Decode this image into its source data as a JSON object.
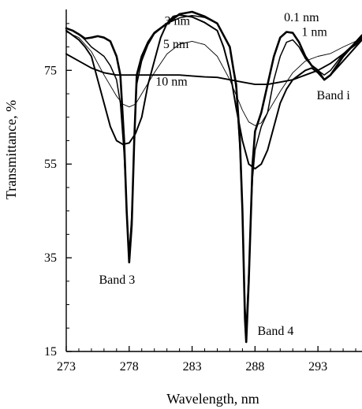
{
  "chart_data": {
    "type": "line",
    "xlabel": "Wavelength, nm",
    "ylabel": "Transmittance, %",
    "xlim": [
      273,
      296.5
    ],
    "ylim": [
      15,
      88
    ],
    "x_ticks": [
      273,
      278,
      283,
      288,
      293
    ],
    "y_ticks": [
      15,
      35,
      55,
      75
    ],
    "grid": false,
    "series": [
      {
        "name": "0.1 nm",
        "color": "#000000",
        "width": 2.6,
        "points": [
          [
            273,
            84
          ],
          [
            273.5,
            83.5
          ],
          [
            274,
            82.7
          ],
          [
            274.5,
            81.8
          ],
          [
            275,
            82
          ],
          [
            275.5,
            82.3
          ],
          [
            276,
            82
          ],
          [
            276.5,
            81.2
          ],
          [
            277,
            78
          ],
          [
            277.3,
            74
          ],
          [
            277.6,
            60
          ],
          [
            277.8,
            45
          ],
          [
            278,
            34
          ],
          [
            278.2,
            42
          ],
          [
            278.4,
            60
          ],
          [
            278.6,
            74
          ],
          [
            279,
            78
          ],
          [
            279.5,
            81
          ],
          [
            280,
            83
          ],
          [
            281,
            85
          ],
          [
            282,
            87
          ],
          [
            283,
            87.5
          ],
          [
            284,
            86.5
          ],
          [
            285,
            85
          ],
          [
            286,
            80
          ],
          [
            286.3,
            75
          ],
          [
            286.5,
            72
          ],
          [
            286.8,
            60
          ],
          [
            287,
            45
          ],
          [
            287.2,
            22
          ],
          [
            287.3,
            17
          ],
          [
            287.5,
            30
          ],
          [
            287.8,
            55
          ],
          [
            288,
            62
          ],
          [
            288.5,
            66
          ],
          [
            289,
            72
          ],
          [
            289.5,
            78
          ],
          [
            290,
            82
          ],
          [
            290.5,
            83.2
          ],
          [
            291,
            83
          ],
          [
            291.5,
            81
          ],
          [
            292,
            78
          ],
          [
            292.5,
            76
          ],
          [
            293,
            75
          ],
          [
            293.5,
            73
          ],
          [
            294,
            74
          ],
          [
            295,
            78
          ],
          [
            296,
            81
          ],
          [
            296.5,
            82.5
          ]
        ]
      },
      {
        "name": "1 nm",
        "color": "#000000",
        "width": 1.5,
        "points": [
          [
            273,
            84
          ],
          [
            273.5,
            83.5
          ],
          [
            274,
            82.7
          ],
          [
            274.5,
            81.5
          ],
          [
            275,
            80
          ],
          [
            275.5,
            79
          ],
          [
            276,
            78
          ],
          [
            276.5,
            76
          ],
          [
            277,
            73
          ],
          [
            277.3,
            68
          ],
          [
            277.6,
            57
          ],
          [
            277.8,
            45
          ],
          [
            278,
            36
          ],
          [
            278.2,
            44
          ],
          [
            278.4,
            60
          ],
          [
            278.6,
            72
          ],
          [
            279,
            77
          ],
          [
            279.5,
            80.5
          ],
          [
            280,
            82.8
          ],
          [
            281,
            85
          ],
          [
            282,
            86.2
          ],
          [
            283,
            86.7
          ],
          [
            284,
            86.3
          ],
          [
            285,
            85
          ],
          [
            286,
            80
          ],
          [
            286.3,
            75
          ],
          [
            286.5,
            71
          ],
          [
            286.8,
            58
          ],
          [
            287,
            44
          ],
          [
            287.2,
            25
          ],
          [
            287.3,
            20
          ],
          [
            287.5,
            32
          ],
          [
            287.8,
            52
          ],
          [
            288,
            58
          ],
          [
            288.5,
            63
          ],
          [
            289,
            66
          ],
          [
            289.5,
            73
          ],
          [
            290,
            78
          ],
          [
            290.5,
            81
          ],
          [
            291,
            81.5
          ],
          [
            291.5,
            80
          ],
          [
            292,
            77.5
          ],
          [
            292.5,
            76
          ],
          [
            293,
            75
          ],
          [
            293.5,
            74
          ],
          [
            294,
            75
          ],
          [
            295,
            78.5
          ],
          [
            296,
            81
          ],
          [
            296.5,
            82.5
          ]
        ]
      },
      {
        "name": "3 nm",
        "color": "#000000",
        "width": 2.0,
        "points": [
          [
            273,
            83.5
          ],
          [
            274,
            81.5
          ],
          [
            274.5,
            80
          ],
          [
            275,
            78
          ],
          [
            275.5,
            73
          ],
          [
            276,
            68
          ],
          [
            276.5,
            63
          ],
          [
            277,
            60
          ],
          [
            277.5,
            59.2
          ],
          [
            278,
            59.5
          ],
          [
            278.5,
            61.5
          ],
          [
            279,
            65
          ],
          [
            279.5,
            72
          ],
          [
            280,
            77
          ],
          [
            280.5,
            82
          ],
          [
            281,
            85
          ],
          [
            281.5,
            86.5
          ],
          [
            282,
            86.8
          ],
          [
            283,
            86.4
          ],
          [
            284,
            85.2
          ],
          [
            285,
            83.5
          ],
          [
            285.5,
            80
          ],
          [
            286,
            75
          ],
          [
            286.5,
            67
          ],
          [
            287,
            60
          ],
          [
            287.5,
            55
          ],
          [
            288,
            54
          ],
          [
            288.5,
            55
          ],
          [
            289,
            58
          ],
          [
            289.5,
            63
          ],
          [
            290,
            68
          ],
          [
            290.5,
            71
          ],
          [
            291,
            73
          ],
          [
            292,
            75
          ],
          [
            292.5,
            75.5
          ],
          [
            293,
            74.5
          ],
          [
            293.5,
            73
          ],
          [
            294,
            74
          ],
          [
            295,
            77
          ],
          [
            296,
            80
          ],
          [
            296.5,
            81.5
          ]
        ]
      },
      {
        "name": "5 nm",
        "color": "#000000",
        "width": 0.9,
        "points": [
          [
            273,
            83.2
          ],
          [
            274,
            82
          ],
          [
            275,
            79
          ],
          [
            276,
            74
          ],
          [
            277,
            69.5
          ],
          [
            277.5,
            67.8
          ],
          [
            278,
            67.2
          ],
          [
            278.5,
            67.8
          ],
          [
            279,
            70
          ],
          [
            280,
            74.5
          ],
          [
            281,
            78.5
          ],
          [
            282,
            80.6
          ],
          [
            283,
            81.2
          ],
          [
            284,
            80.5
          ],
          [
            285,
            78
          ],
          [
            286,
            73
          ],
          [
            287,
            66.5
          ],
          [
            287.5,
            64
          ],
          [
            288,
            63.2
          ],
          [
            288.5,
            63.8
          ],
          [
            289,
            66
          ],
          [
            290,
            70.5
          ],
          [
            291,
            74.5
          ],
          [
            292,
            77
          ],
          [
            293,
            78
          ],
          [
            294,
            78.6
          ],
          [
            295,
            80
          ],
          [
            296,
            81.2
          ],
          [
            296.5,
            81.8
          ]
        ]
      },
      {
        "name": "10 nm",
        "color": "#000000",
        "width": 1.9,
        "points": [
          [
            273,
            78.5
          ],
          [
            274,
            77
          ],
          [
            275,
            75.5
          ],
          [
            276,
            74.5
          ],
          [
            277,
            74
          ],
          [
            278,
            74
          ],
          [
            279,
            74
          ],
          [
            280,
            74
          ],
          [
            281,
            74
          ],
          [
            282,
            74
          ],
          [
            283,
            73.8
          ],
          [
            284,
            73.6
          ],
          [
            285,
            73.5
          ],
          [
            286,
            73
          ],
          [
            287,
            72.5
          ],
          [
            288,
            72
          ],
          [
            289,
            72
          ],
          [
            290,
            72.5
          ],
          [
            291,
            73
          ],
          [
            292,
            74
          ],
          [
            293,
            75
          ],
          [
            294,
            76.5
          ],
          [
            295,
            78.5
          ],
          [
            296,
            80.5
          ],
          [
            296.5,
            82
          ]
        ]
      }
    ],
    "annotations": [
      {
        "text": "0.1 nm",
        "x": 290.3,
        "y": 85.5
      },
      {
        "text": "1 nm",
        "x": 291.7,
        "y": 82.4
      },
      {
        "text": "3 nm",
        "x": 280.8,
        "y": 84.7
      },
      {
        "text": "5 nm",
        "x": 280.7,
        "y": 79.8
      },
      {
        "text": "10 nm",
        "x": 280.1,
        "y": 71.8
      },
      {
        "text": "Band 3",
        "x": 275.6,
        "y": 29.5
      },
      {
        "text": "Band 4",
        "x": 288.2,
        "y": 18.5
      },
      {
        "text": "Band i",
        "x": 292.9,
        "y": 68.8
      }
    ]
  }
}
